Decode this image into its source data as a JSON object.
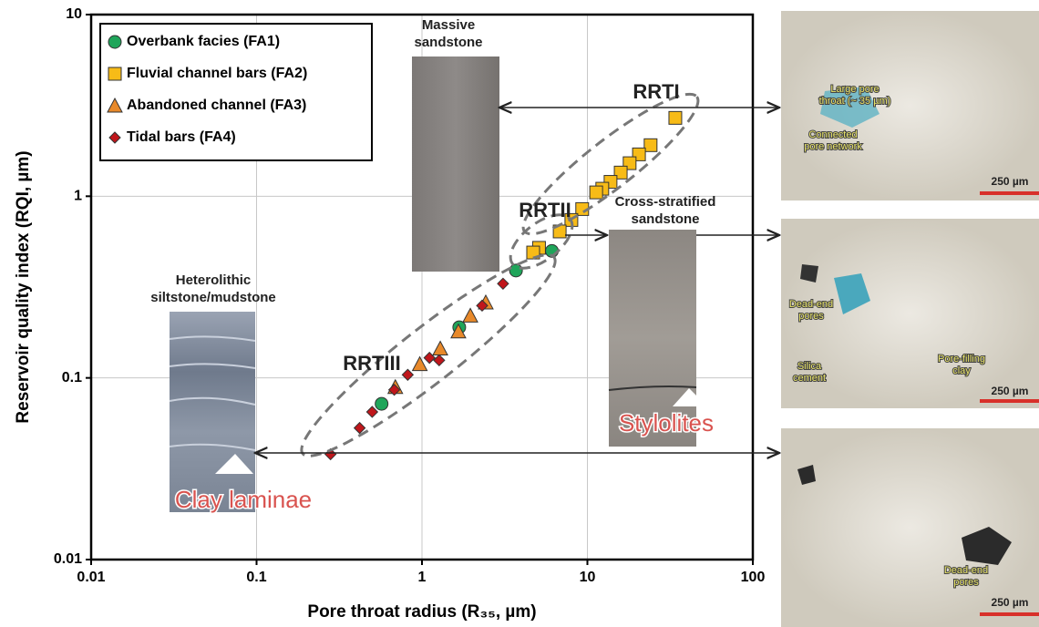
{
  "chart_data": {
    "type": "scatter",
    "x_label": "Pore throat radius (R₃₅, µm)",
    "y_label": "Reservoir quality index (RQI, µm)",
    "xlim": [
      0.01,
      100
    ],
    "ylim": [
      0.01,
      10
    ],
    "xticks": [
      0.01,
      0.1,
      1,
      10,
      100
    ],
    "yticks": [
      0.01,
      0.1,
      1,
      10
    ],
    "xscale": "log",
    "yscale": "log",
    "grid": true,
    "legend": "upper left",
    "series": [
      {
        "name": "Overbank facies (FA1)",
        "color": "#1fa55a",
        "marker": "circle",
        "x": [
          0.57,
          1.68,
          3.7,
          6.1
        ],
        "values": [
          0.072,
          0.19,
          0.39,
          0.5
        ]
      },
      {
        "name": "Fluvial channel bars (FA2)",
        "color": "#f7bb17",
        "marker": "square",
        "x": [
          34.0,
          24.1,
          20.5,
          18.0,
          15.9,
          13.8,
          12.3,
          11.3,
          9.3,
          8.0,
          6.8,
          5.1,
          4.7
        ],
        "values": [
          2.7,
          1.91,
          1.7,
          1.52,
          1.35,
          1.2,
          1.1,
          1.05,
          0.85,
          0.74,
          0.64,
          0.52,
          0.49
        ]
      },
      {
        "name": "Abandoned channel (FA3)",
        "color": "#e8892a",
        "marker": "triangle",
        "x": [
          0.69,
          0.97,
          1.29,
          1.66,
          1.96,
          2.43
        ],
        "values": [
          0.089,
          0.119,
          0.145,
          0.18,
          0.22,
          0.26
        ]
      },
      {
        "name": "Tidal bars (FA4)",
        "color": "#c0161b",
        "marker": "diamond",
        "x": [
          0.28,
          0.42,
          0.5,
          0.68,
          0.82,
          1.11,
          1.27,
          2.31,
          3.09
        ],
        "values": [
          0.038,
          0.053,
          0.065,
          0.086,
          0.104,
          0.129,
          0.125,
          0.25,
          0.33
        ]
      }
    ],
    "annotations": [
      {
        "text": [
          "RRTI"
        ]
      },
      {
        "text": [
          "RRTII"
        ]
      },
      {
        "text": [
          "RRTIII"
        ]
      },
      {
        "text": [
          "Massive",
          "sandstone"
        ]
      },
      {
        "text": [
          "Cross-stratified",
          "sandstone"
        ]
      },
      {
        "text": [
          "Heterolithic",
          "siltstone/mudstone"
        ]
      },
      {
        "text": [
          "Clay laminae"
        ]
      },
      {
        "text": [
          "Stylolites"
        ]
      },
      {
        "text": [
          "Large pore",
          "throat (~ 35 µm)"
        ]
      },
      {
        "text": [
          "Connected",
          "pore network"
        ]
      },
      {
        "text": [
          "250 µm"
        ]
      },
      {
        "text": [
          "Dead-end",
          "pores"
        ]
      },
      {
        "text": [
          "Silica",
          "cement"
        ]
      },
      {
        "text": [
          "Pore-filling",
          "clay"
        ]
      },
      {
        "text": [
          "250 µm"
        ]
      },
      {
        "text": [
          "Dead-end",
          "pores"
        ]
      },
      {
        "text": [
          "250 µm"
        ]
      }
    ]
  }
}
